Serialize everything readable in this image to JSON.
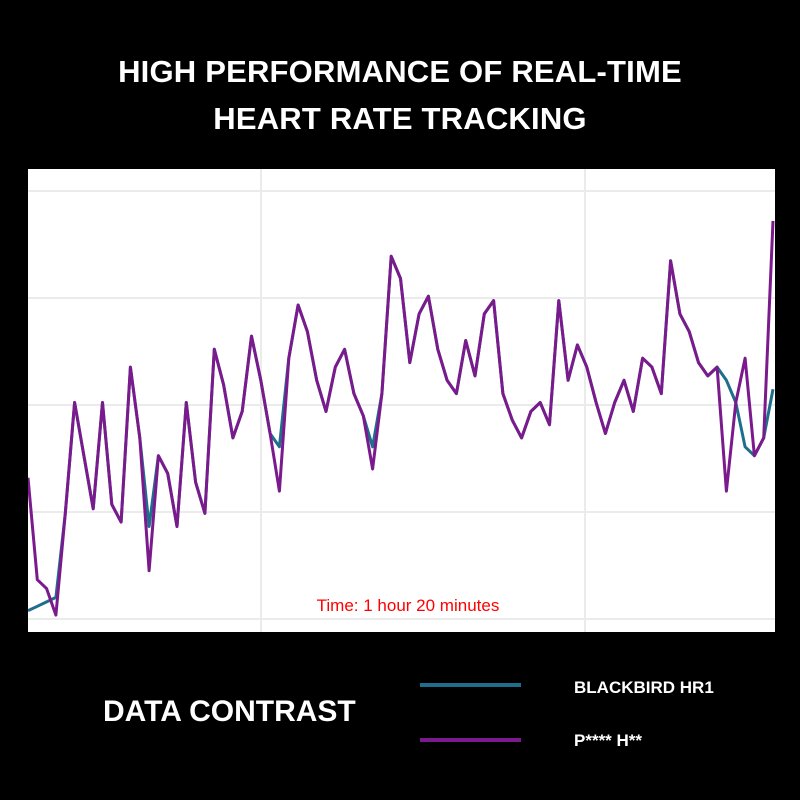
{
  "title_lines": [
    "HIGH PERFORMANCE OF REAL-TIME",
    "HEART RATE TRACKING"
  ],
  "legend_heading": "DATA CONTRAST",
  "colors": {
    "background": "#000000",
    "plot_background": "#ffffff",
    "grid": "#ebebeb",
    "annotation": "#ff0000"
  },
  "chart_data": {
    "type": "line",
    "title": "HIGH PERFORMANCE OF REAL-TIME HEART RATE TRACKING",
    "annotation": "Time: 1 hour 20 minutes",
    "xlabel": "",
    "ylabel": "",
    "x_tick_labels": [],
    "y_tick_labels": [],
    "grid": true,
    "legend_position": "bottom",
    "x": [
      0,
      1,
      2,
      3,
      4,
      5,
      6,
      7,
      8,
      9,
      10,
      11,
      12,
      13,
      14,
      15,
      16,
      17,
      18,
      19,
      20,
      21,
      22,
      23,
      24,
      25,
      26,
      27,
      28,
      29,
      30,
      31,
      32,
      33,
      34,
      35,
      36,
      37,
      38,
      39,
      40,
      41,
      42,
      43,
      44,
      45,
      46,
      47,
      48,
      49,
      50,
      51,
      52,
      53,
      54,
      55,
      56,
      57,
      58,
      59,
      60,
      61,
      62,
      63,
      64,
      65,
      66,
      67,
      68,
      69,
      70,
      71,
      72,
      73,
      74,
      75,
      76,
      77,
      78,
      79,
      80
    ],
    "ylim": [
      0,
      100
    ],
    "series": [
      {
        "name": "BLACKBIRD HR1",
        "color": "#1f6e8c",
        "values": [
          3,
          4,
          5,
          6,
          25,
          50,
          38,
          26,
          50,
          27,
          23,
          58,
          42,
          22,
          38,
          34,
          22,
          50,
          32,
          25,
          62,
          54,
          42,
          48,
          65,
          55,
          43,
          40,
          60,
          72,
          66,
          55,
          48,
          58,
          62,
          52,
          47,
          40,
          52,
          83,
          78,
          59,
          70,
          74,
          62,
          55,
          52,
          64,
          56,
          70,
          73,
          52,
          46,
          42,
          48,
          50,
          45,
          73,
          55,
          63,
          58,
          50,
          43,
          50,
          55,
          48,
          60,
          58,
          52,
          82,
          70,
          66,
          59,
          56,
          58,
          55,
          50,
          40,
          38,
          42,
          53
        ]
      },
      {
        "name": "P**** H**",
        "color": "#7a1a8c",
        "values": [
          33,
          10,
          8,
          2,
          25,
          50,
          38,
          26,
          50,
          27,
          23,
          58,
          42,
          12,
          38,
          34,
          22,
          50,
          32,
          25,
          62,
          54,
          42,
          48,
          65,
          55,
          43,
          30,
          60,
          72,
          66,
          55,
          48,
          58,
          62,
          52,
          47,
          35,
          52,
          83,
          78,
          59,
          70,
          74,
          62,
          55,
          52,
          64,
          56,
          70,
          73,
          52,
          46,
          42,
          48,
          50,
          45,
          73,
          55,
          63,
          58,
          50,
          43,
          50,
          55,
          48,
          60,
          58,
          52,
          82,
          70,
          66,
          59,
          56,
          58,
          30,
          50,
          60,
          38,
          42,
          91
        ]
      }
    ]
  }
}
